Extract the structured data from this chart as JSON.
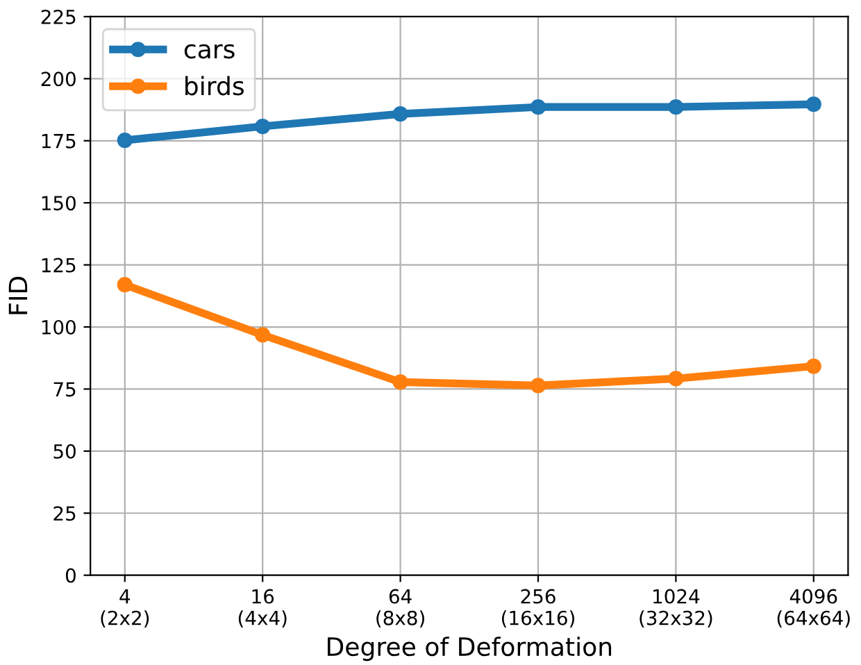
{
  "chart_data": {
    "type": "line",
    "xlabel": "Degree of Deformation",
    "ylabel": "FID",
    "categories": [
      "4\n(2x2)",
      "16\n(4x4)",
      "64\n(8x8)",
      "256\n(16x16)",
      "1024\n(32x32)",
      "4096\n(64x64)"
    ],
    "series": [
      {
        "name": "cars",
        "color": "#1f77b4",
        "values": [
          175.2,
          180.8,
          185.8,
          188.6,
          188.6,
          189.7
        ]
      },
      {
        "name": "birds",
        "color": "#ff7f0e",
        "values": [
          117.0,
          96.8,
          77.8,
          76.4,
          79.2,
          84.2
        ]
      }
    ],
    "ylim": [
      0,
      225
    ],
    "yticks": [
      0,
      25,
      50,
      75,
      100,
      125,
      150,
      175,
      200,
      225
    ],
    "grid": true,
    "legend": "top left",
    "marker": "circle",
    "line_style": "solid"
  }
}
